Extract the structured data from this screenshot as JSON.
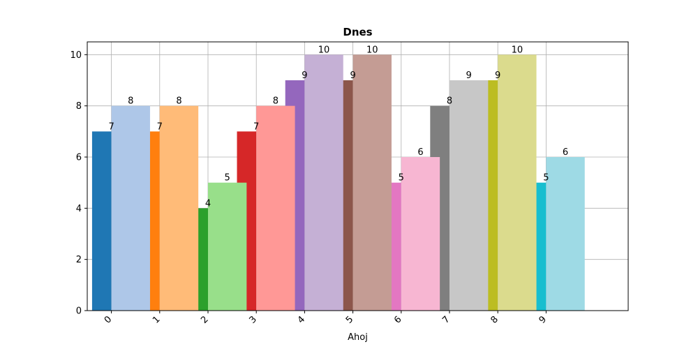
{
  "chart_data": {
    "type": "bar",
    "title": "Dnes",
    "xlabel": "Ahoj",
    "ylabel": "",
    "ylim": [
      0,
      10.5
    ],
    "xlim": [
      -0.5,
      10.7
    ],
    "yticks": [
      0,
      2,
      4,
      6,
      8,
      10
    ],
    "categories": [
      "0",
      "1",
      "2",
      "3",
      "4",
      "5",
      "6",
      "7",
      "8",
      "9"
    ],
    "grid": true,
    "series": [
      {
        "values": [
          7,
          7,
          4,
          7,
          9,
          9,
          5,
          8,
          9,
          5
        ],
        "colors": [
          "#1f77b4",
          "#ff7f0e",
          "#2ca02c",
          "#d62728",
          "#9467bd",
          "#8c564b",
          "#e377c2",
          "#7f7f7f",
          "#bcbd22",
          "#17becf"
        ]
      },
      {
        "values": [
          8,
          8,
          5,
          8,
          10,
          10,
          6,
          9,
          10,
          6
        ],
        "colors": [
          "#aec7e8",
          "#ffbb78",
          "#98df8a",
          "#ff9896",
          "#c5b0d5",
          "#c49c94",
          "#f7b6d2",
          "#c7c7c7",
          "#dbdb8d",
          "#9edae5"
        ]
      }
    ]
  }
}
